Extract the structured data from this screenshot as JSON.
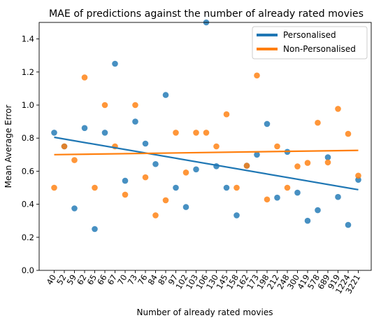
{
  "chart_data": {
    "type": "scatter",
    "title": "MAE of predictions against the number of already rated movies",
    "xlabel": "Number of already rated movies",
    "ylabel": "Mean Average Error",
    "categories": [
      "40",
      "52",
      "59",
      "62",
      "65",
      "66",
      "67",
      "70",
      "73",
      "76",
      "84",
      "85",
      "97",
      "102",
      "103",
      "106",
      "130",
      "145",
      "158",
      "162",
      "173",
      "198",
      "212",
      "248",
      "300",
      "419",
      "578",
      "689",
      "919",
      "1224",
      "3221"
    ],
    "ylim": [
      0,
      1.5
    ],
    "yticks": [
      "0.0",
      "0.2",
      "0.4",
      "0.6",
      "0.8",
      "1.0",
      "1.2",
      "1.4"
    ],
    "legend_position": "top-right",
    "grid": false,
    "series": [
      {
        "name": "Personalised",
        "color": "#1f77b4",
        "values": [
          0.833,
          0.75,
          0.375,
          0.861,
          0.25,
          0.833,
          1.25,
          0.542,
          0.9,
          0.767,
          0.643,
          1.061,
          0.5,
          0.383,
          0.611,
          1.5,
          0.63,
          0.5,
          0.333,
          0.633,
          0.7,
          0.886,
          0.44,
          0.717,
          0.47,
          0.3,
          0.364,
          0.684,
          0.444,
          0.275,
          0.548
        ],
        "trend": [
          0.805,
          0.488
        ]
      },
      {
        "name": "Non-Personalised",
        "color": "#ff7f0e",
        "values": [
          0.5,
          0.75,
          0.667,
          1.167,
          0.5,
          1.0,
          0.75,
          0.458,
          1.0,
          0.563,
          0.333,
          0.424,
          0.833,
          0.592,
          0.833,
          0.833,
          0.75,
          0.944,
          0.5,
          0.633,
          1.179,
          0.429,
          0.75,
          0.5,
          0.629,
          0.65,
          0.893,
          0.653,
          0.977,
          0.826,
          0.573
        ],
        "trend": [
          0.7,
          0.726
        ]
      }
    ]
  }
}
